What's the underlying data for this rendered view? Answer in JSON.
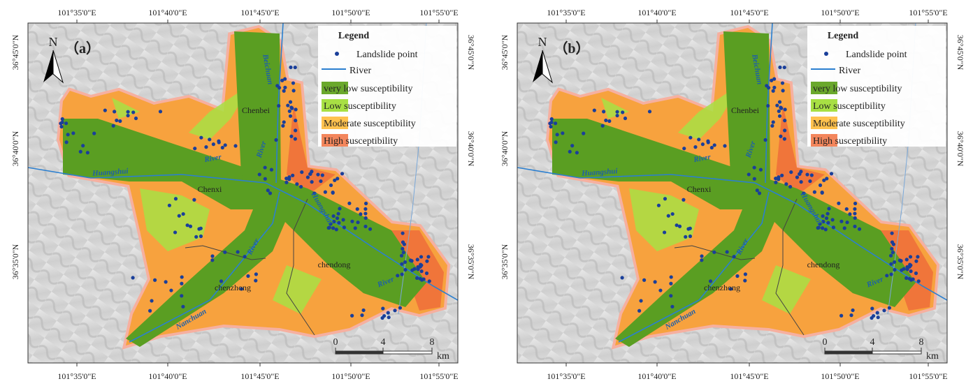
{
  "panels": [
    {
      "label": "（a）",
      "north": "N",
      "top_ticks": [
        "101°35'0\"E",
        "101°40'0\"E",
        "101°45'0\"E",
        "101°50'0\"E",
        "101°55'0\"E"
      ],
      "bottom_ticks": [
        "101°35'0\"E",
        "101°40'0\"E",
        "101°45'0\"E",
        "101°50'0\"E",
        "101°55'0\"E"
      ],
      "left_ticks": [
        "36°45'0\"N",
        "36°40'0\"N",
        "36°35'0\"N"
      ],
      "right_ticks": [
        "36°45'0\"N",
        "36°40'0\"N",
        "36°35'0\"N"
      ],
      "places": [
        "Chenbei",
        "Chenxi",
        "chendong",
        "chenzhong"
      ],
      "rivers": [
        "Beichuan",
        "River",
        "Huangshui",
        "River",
        "Huangshui",
        "River",
        "Nanchuan",
        "River"
      ],
      "legend": {
        "title": "Legend",
        "items": [
          "Landslide point",
          "River",
          "very low susceptibility",
          "Low susceptibility",
          "Moderate susceptibility",
          "High susceptibility"
        ]
      },
      "scale": {
        "ticks": [
          "0",
          "4",
          "8"
        ],
        "unit": "km"
      }
    },
    {
      "label": "（b）",
      "north": "N",
      "top_ticks": [
        "101°35'0\"E",
        "101°40'0\"E",
        "101°45'0\"E",
        "101°50'0\"E",
        "101°55'0\"E"
      ],
      "bottom_ticks": [
        "101°35'0\"E",
        "101°40'0\"E",
        "101°45'0\"E",
        "101°50'0\"E",
        "101°55'0\"E"
      ],
      "left_ticks": [
        "36°45'0\"N",
        "36°40'0\"N",
        "36°35'0\"N"
      ],
      "right_ticks": [
        "36°45'0\"N",
        "36°40'0\"N",
        "36°35'0\"N"
      ],
      "places": [
        "Chenbei",
        "Chenxi",
        "chendong",
        "chenzhong"
      ],
      "rivers": [
        "Beichuan",
        "River",
        "Huangshui",
        "River",
        "Huangshui",
        "River",
        "Nanchuan",
        "River"
      ],
      "legend": {
        "title": "Legend",
        "items": [
          "Landslide point",
          "River",
          "very low susceptibility",
          "Low susceptibility",
          "Moderate susceptibility",
          "High susceptibility"
        ]
      },
      "scale": {
        "ticks": [
          "0",
          "4",
          "8"
        ],
        "unit": "km"
      }
    }
  ]
}
